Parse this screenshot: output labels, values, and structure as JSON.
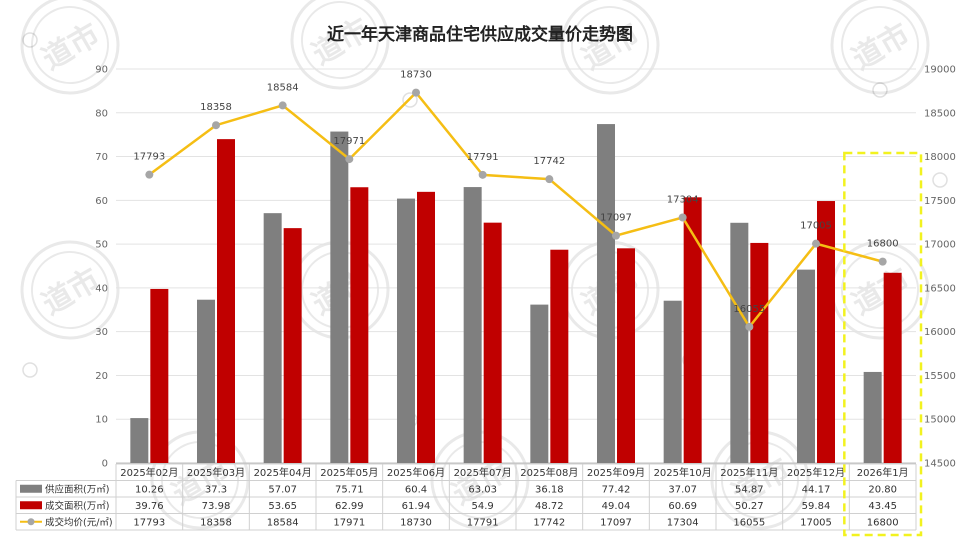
{
  "title": "近一年天津商品住宅供应成交量价走势图",
  "watermark": "道市",
  "colors": {
    "supply": "#7f7f7f",
    "deal": "#c00000",
    "price": "#f5be14",
    "price_marker": "#a6a6a6",
    "highlight": "#f2f21f"
  },
  "chart_data": {
    "type": "bar",
    "categories": [
      "2025年02月",
      "2025年03月",
      "2025年04月",
      "2025年05月",
      "2025年06月",
      "2025年07月",
      "2025年08月",
      "2025年09月",
      "2025年10月",
      "2025年11月",
      "2025年12月",
      "2026年1月"
    ],
    "series": [
      {
        "name": "供应面积(万㎡)",
        "type": "bar",
        "axis": "left",
        "values": [
          10.26,
          37.3,
          57.07,
          75.71,
          60.4,
          63.03,
          36.18,
          77.42,
          37.07,
          54.87,
          44.17,
          20.8
        ]
      },
      {
        "name": "成交面积(万㎡)",
        "type": "bar",
        "axis": "left",
        "values": [
          39.76,
          73.98,
          53.65,
          62.99,
          61.94,
          54.9,
          48.72,
          49.04,
          60.69,
          50.27,
          59.84,
          43.45
        ]
      },
      {
        "name": "成交均价(元/㎡)",
        "type": "line",
        "axis": "right",
        "values": [
          17793,
          18358,
          18584,
          17971,
          18730,
          17791,
          17742,
          17097,
          17304,
          16055,
          17005,
          16800
        ]
      }
    ],
    "table_values": [
      [
        "10.26",
        "37.3",
        "57.07",
        "75.71",
        "60.4",
        "63.03",
        "36.18",
        "77.42",
        "37.07",
        "54.87",
        "44.17",
        "20.80"
      ],
      [
        "39.76",
        "73.98",
        "53.65",
        "62.99",
        "61.94",
        "54.9",
        "48.72",
        "49.04",
        "60.69",
        "50.27",
        "59.84",
        "43.45"
      ],
      [
        "17793",
        "18358",
        "18584",
        "17971",
        "18730",
        "17791",
        "17742",
        "17097",
        "17304",
        "16055",
        "17005",
        "16800"
      ]
    ],
    "line_labels": [
      "17793",
      "18358",
      "18584",
      "17971",
      "18730",
      "17791",
      "17742",
      "17097",
      "17304",
      "16055",
      "17005",
      "16800"
    ],
    "y_left": {
      "min": 0,
      "max": 90,
      "step": 10
    },
    "y_right": {
      "min": 14500,
      "max": 19000,
      "step": 500
    },
    "grid": true,
    "legend": "data-table",
    "highlight_category": "2026年1月"
  }
}
